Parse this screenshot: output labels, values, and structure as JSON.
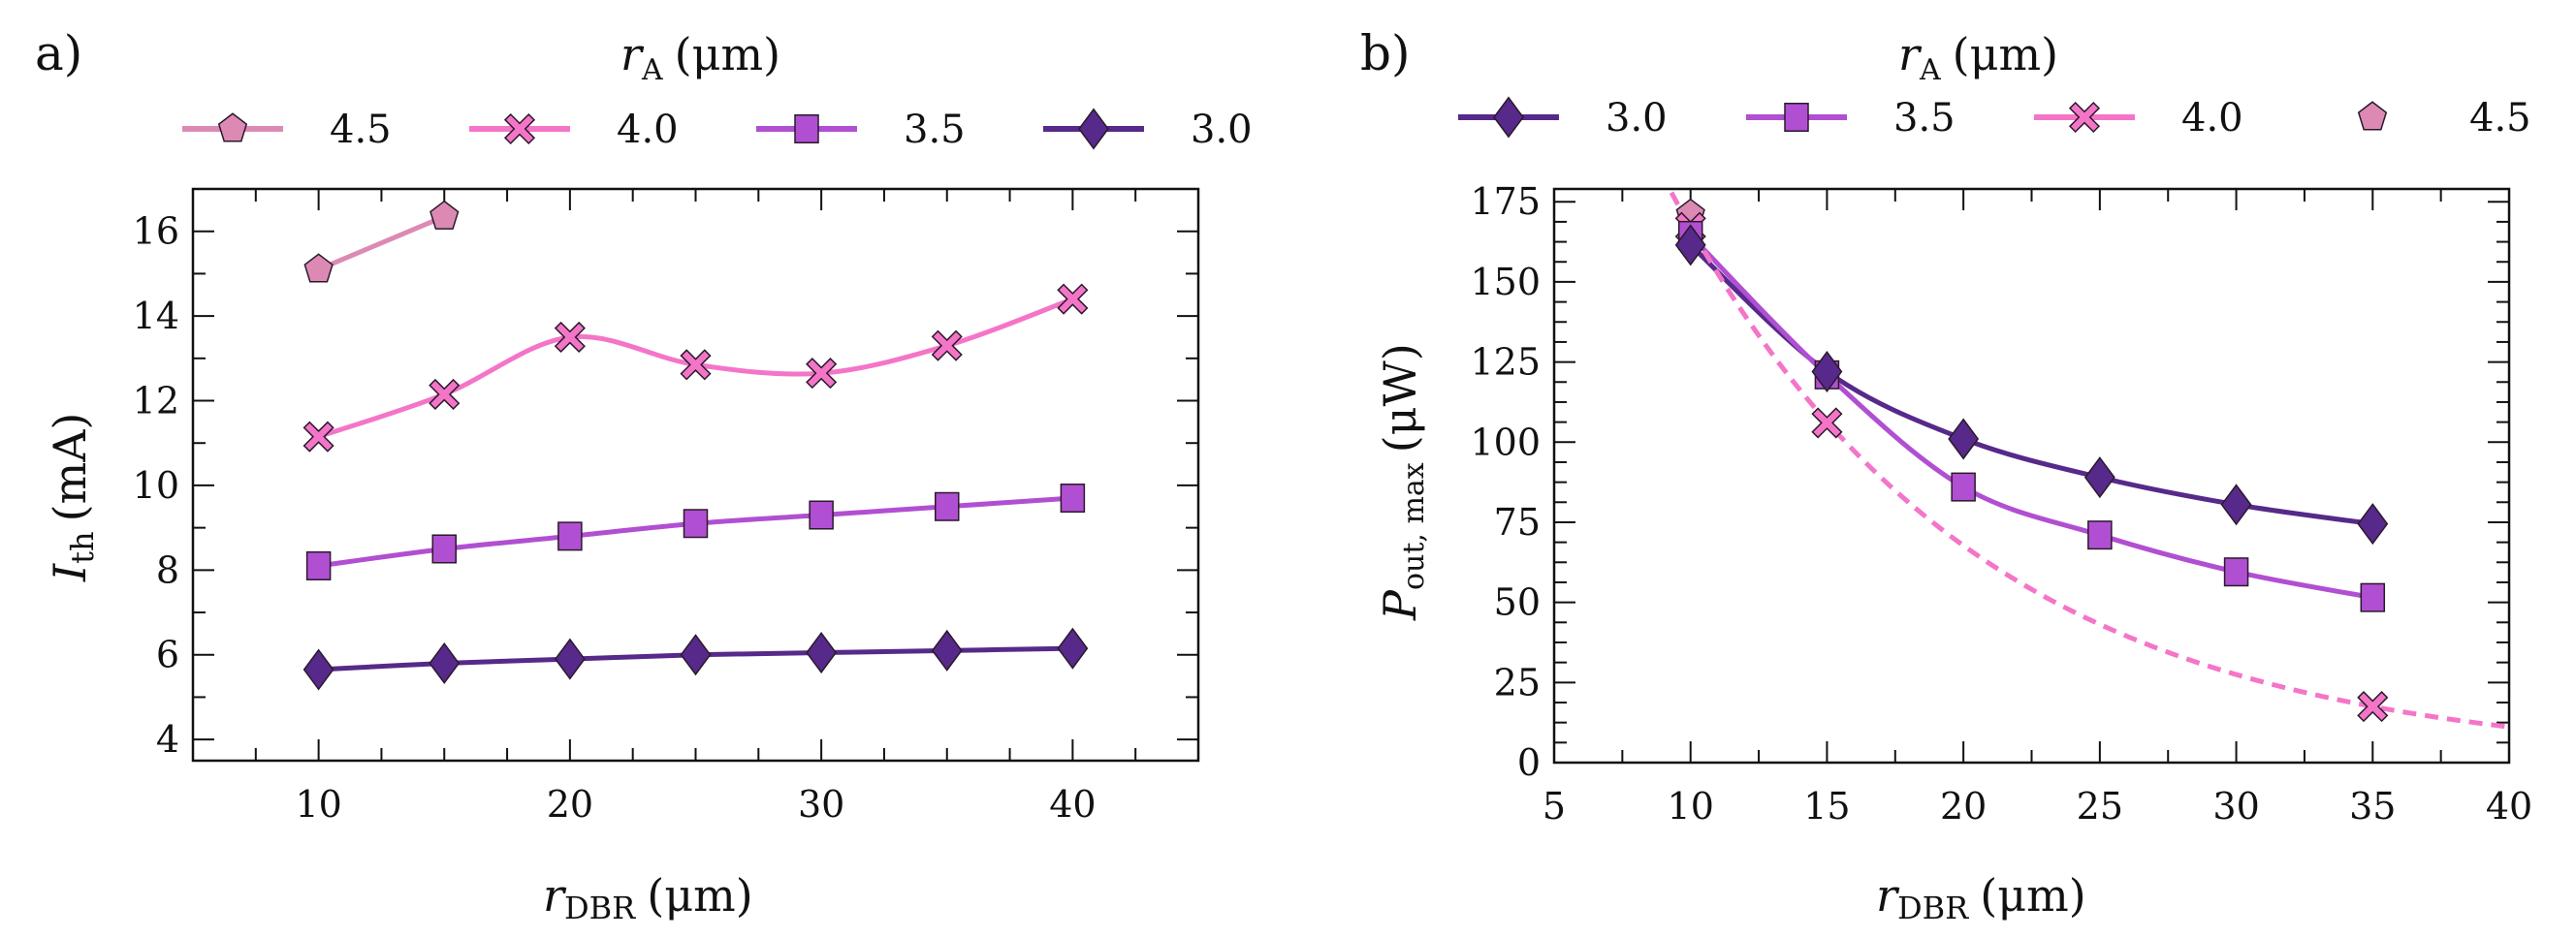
{
  "chart_data": [
    {
      "panel": "a)",
      "type": "line",
      "title": "",
      "legend_title": "r_A (μm)",
      "legend_placement": "top",
      "xlabel": "r_DBR (μm)",
      "ylabel": "I_th (mA)",
      "xlim": [
        5,
        45
      ],
      "ylim": [
        3.5,
        17
      ],
      "xticks": [
        10,
        20,
        30,
        40
      ],
      "yticks": [
        4,
        6,
        8,
        10,
        12,
        14,
        16
      ],
      "grid": false,
      "series": [
        {
          "name": "4.5",
          "marker": "pentagon",
          "color": "#dc8ab4",
          "x": [
            10,
            15
          ],
          "y": [
            15.1,
            16.35
          ]
        },
        {
          "name": "4.0",
          "marker": "x",
          "color": "#f475c8",
          "x": [
            10,
            15,
            20,
            25,
            30,
            35,
            40
          ],
          "y": [
            11.15,
            12.15,
            13.5,
            12.85,
            12.65,
            13.3,
            14.4
          ]
        },
        {
          "name": "3.5",
          "marker": "square",
          "color": "#b14fd2",
          "x": [
            10,
            15,
            20,
            25,
            30,
            35,
            40
          ],
          "y": [
            8.1,
            8.5,
            8.8,
            9.1,
            9.3,
            9.5,
            9.7
          ]
        },
        {
          "name": "3.0",
          "marker": "diamond",
          "color": "#56298a",
          "x": [
            10,
            15,
            20,
            25,
            30,
            35,
            40
          ],
          "y": [
            5.65,
            5.8,
            5.9,
            6.0,
            6.05,
            6.1,
            6.15
          ]
        }
      ]
    },
    {
      "panel": "b)",
      "type": "line",
      "title": "",
      "legend_title": "r_A (μm)",
      "legend_placement": "top",
      "xlabel": "r_DBR (μm)",
      "ylabel": "P_out, max (μW)",
      "xlim": [
        5,
        40
      ],
      "ylim": [
        0,
        179
      ],
      "xticks": [
        5,
        10,
        15,
        20,
        25,
        30,
        35,
        40
      ],
      "yticks": [
        0,
        25,
        50,
        75,
        100,
        125,
        150,
        175
      ],
      "grid": false,
      "series": [
        {
          "name": "3.0",
          "marker": "diamond",
          "color": "#56298a",
          "x": [
            10,
            15,
            20,
            25,
            30,
            35
          ],
          "y": [
            161.5,
            122,
            101,
            89,
            80.5,
            74.5
          ]
        },
        {
          "name": "3.5",
          "marker": "square",
          "color": "#b14fd2",
          "x": [
            10,
            15,
            20,
            25,
            30,
            35
          ],
          "y": [
            164.5,
            121,
            86,
            71,
            59.5,
            51.5
          ]
        },
        {
          "name": "4.0",
          "marker": "x",
          "color": "#f475c8",
          "x": [
            10,
            15,
            35
          ],
          "y": [
            167,
            106,
            17.5
          ],
          "fit": "dashed"
        },
        {
          "name": "4.5",
          "marker": "pentagon",
          "color": "#dc8ab4",
          "x": [
            10
          ],
          "y": [
            171
          ]
        }
      ]
    }
  ],
  "labels": {
    "panel_a": "a)",
    "panel_b": "b)",
    "legend_title_var": "r",
    "legend_title_sub": "A",
    "legend_title_unit": "(μm)",
    "xlabel_var": "r",
    "xlabel_sub": "DBR",
    "xlabel_unit": "(μm)",
    "a_ylabel_var": "I",
    "a_ylabel_sub": "th",
    "a_ylabel_unit": "(mA)",
    "b_ylabel_var": "P",
    "b_ylabel_sub": "out, max",
    "b_ylabel_unit": "(μW)"
  }
}
